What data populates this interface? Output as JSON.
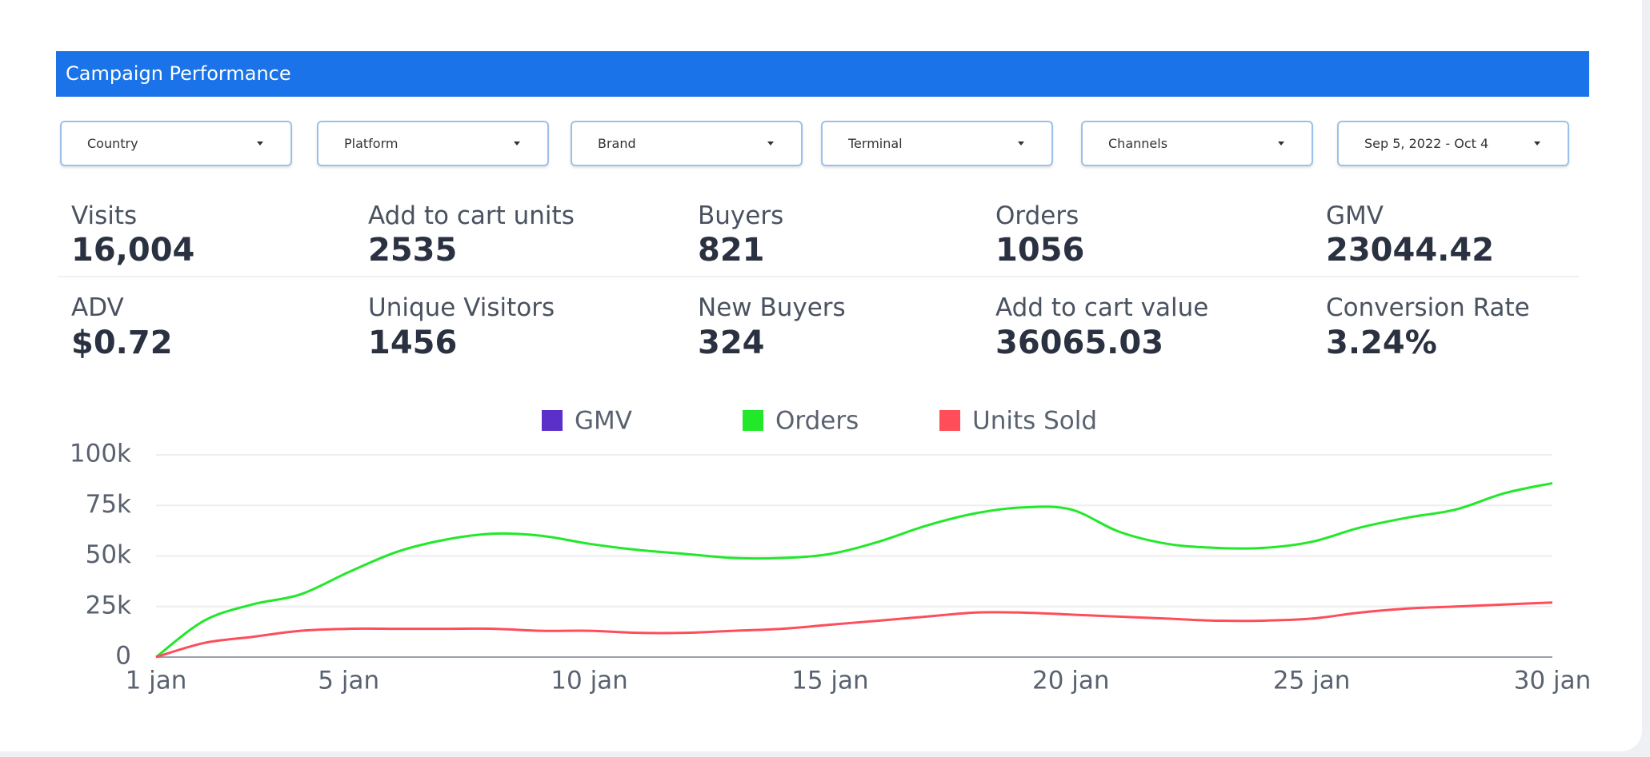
{
  "header": {
    "title": "Campaign Performance"
  },
  "filters": [
    "Country",
    "Platform",
    "Brand",
    "Terminal",
    "Channels",
    "Sep 5, 2022 - Oct 4"
  ],
  "metrics": [
    [
      {
        "label": "Visits",
        "value": "16,004"
      },
      {
        "label": "Add to cart units",
        "value": "2535"
      },
      {
        "label": "Buyers",
        "value": "821"
      },
      {
        "label": "Orders",
        "value": "1056"
      },
      {
        "label": "GMV",
        "value": "23044.42"
      }
    ],
    [
      {
        "label": "ADV",
        "value": "$0.72"
      },
      {
        "label": "Unique Visitors",
        "value": "1456"
      },
      {
        "label": "New Buyers",
        "value": "324"
      },
      {
        "label": "Add to cart value",
        "value": "36065.03"
      },
      {
        "label": "Conversion Rate",
        "value": "3.24%"
      }
    ]
  ],
  "chart_data": {
    "type": "line",
    "x": [
      1,
      2,
      3,
      4,
      5,
      6,
      7,
      8,
      9,
      10,
      11,
      12,
      13,
      14,
      15,
      16,
      17,
      18,
      19,
      20,
      21,
      22,
      23,
      24,
      25,
      26,
      27,
      28,
      29,
      30
    ],
    "xlim": [
      1,
      30
    ],
    "xticks": [
      {
        "value": 1,
        "label": "1 jan"
      },
      {
        "value": 5,
        "label": "5 jan"
      },
      {
        "value": 10,
        "label": "10 jan"
      },
      {
        "value": 15,
        "label": "15 jan"
      },
      {
        "value": 20,
        "label": "20 jan"
      },
      {
        "value": 25,
        "label": "25 jan"
      },
      {
        "value": 30,
        "label": "30 jan"
      }
    ],
    "ylim": [
      0,
      100000
    ],
    "yticks": [
      0,
      {
        "value": 25000,
        "label": "25k"
      },
      {
        "value": 50000,
        "label": "50k"
      },
      {
        "value": 75000,
        "label": "75k"
      },
      {
        "value": 100000,
        "label": "100k"
      }
    ],
    "grid": true,
    "series": [
      {
        "name": "GMV",
        "color": "#5b2fc9",
        "values": [
          null,
          null,
          null,
          null,
          null,
          null,
          null,
          null,
          null,
          null,
          null,
          null,
          null,
          null,
          null,
          null,
          null,
          null,
          null,
          null,
          null,
          null,
          null,
          null,
          null,
          null,
          null,
          null,
          null,
          null
        ]
      },
      {
        "name": "Orders",
        "color": "#22e82a",
        "values": [
          0,
          18000,
          26000,
          31000,
          42000,
          52000,
          58000,
          61000,
          60000,
          56000,
          53000,
          51000,
          49000,
          49000,
          51000,
          57000,
          65000,
          71000,
          74000,
          73000,
          62000,
          56000,
          54000,
          54000,
          57000,
          64000,
          69000,
          73000,
          81000,
          86000
        ]
      },
      {
        "name": "Units Sold",
        "color": "#ff4d5a",
        "values": [
          0,
          7000,
          10000,
          13000,
          14000,
          14000,
          14000,
          14000,
          13000,
          13000,
          12000,
          12000,
          13000,
          14000,
          16000,
          18000,
          20000,
          22000,
          22000,
          21000,
          20000,
          19000,
          18000,
          18000,
          19000,
          22000,
          24000,
          25000,
          26000,
          27000
        ]
      }
    ]
  }
}
